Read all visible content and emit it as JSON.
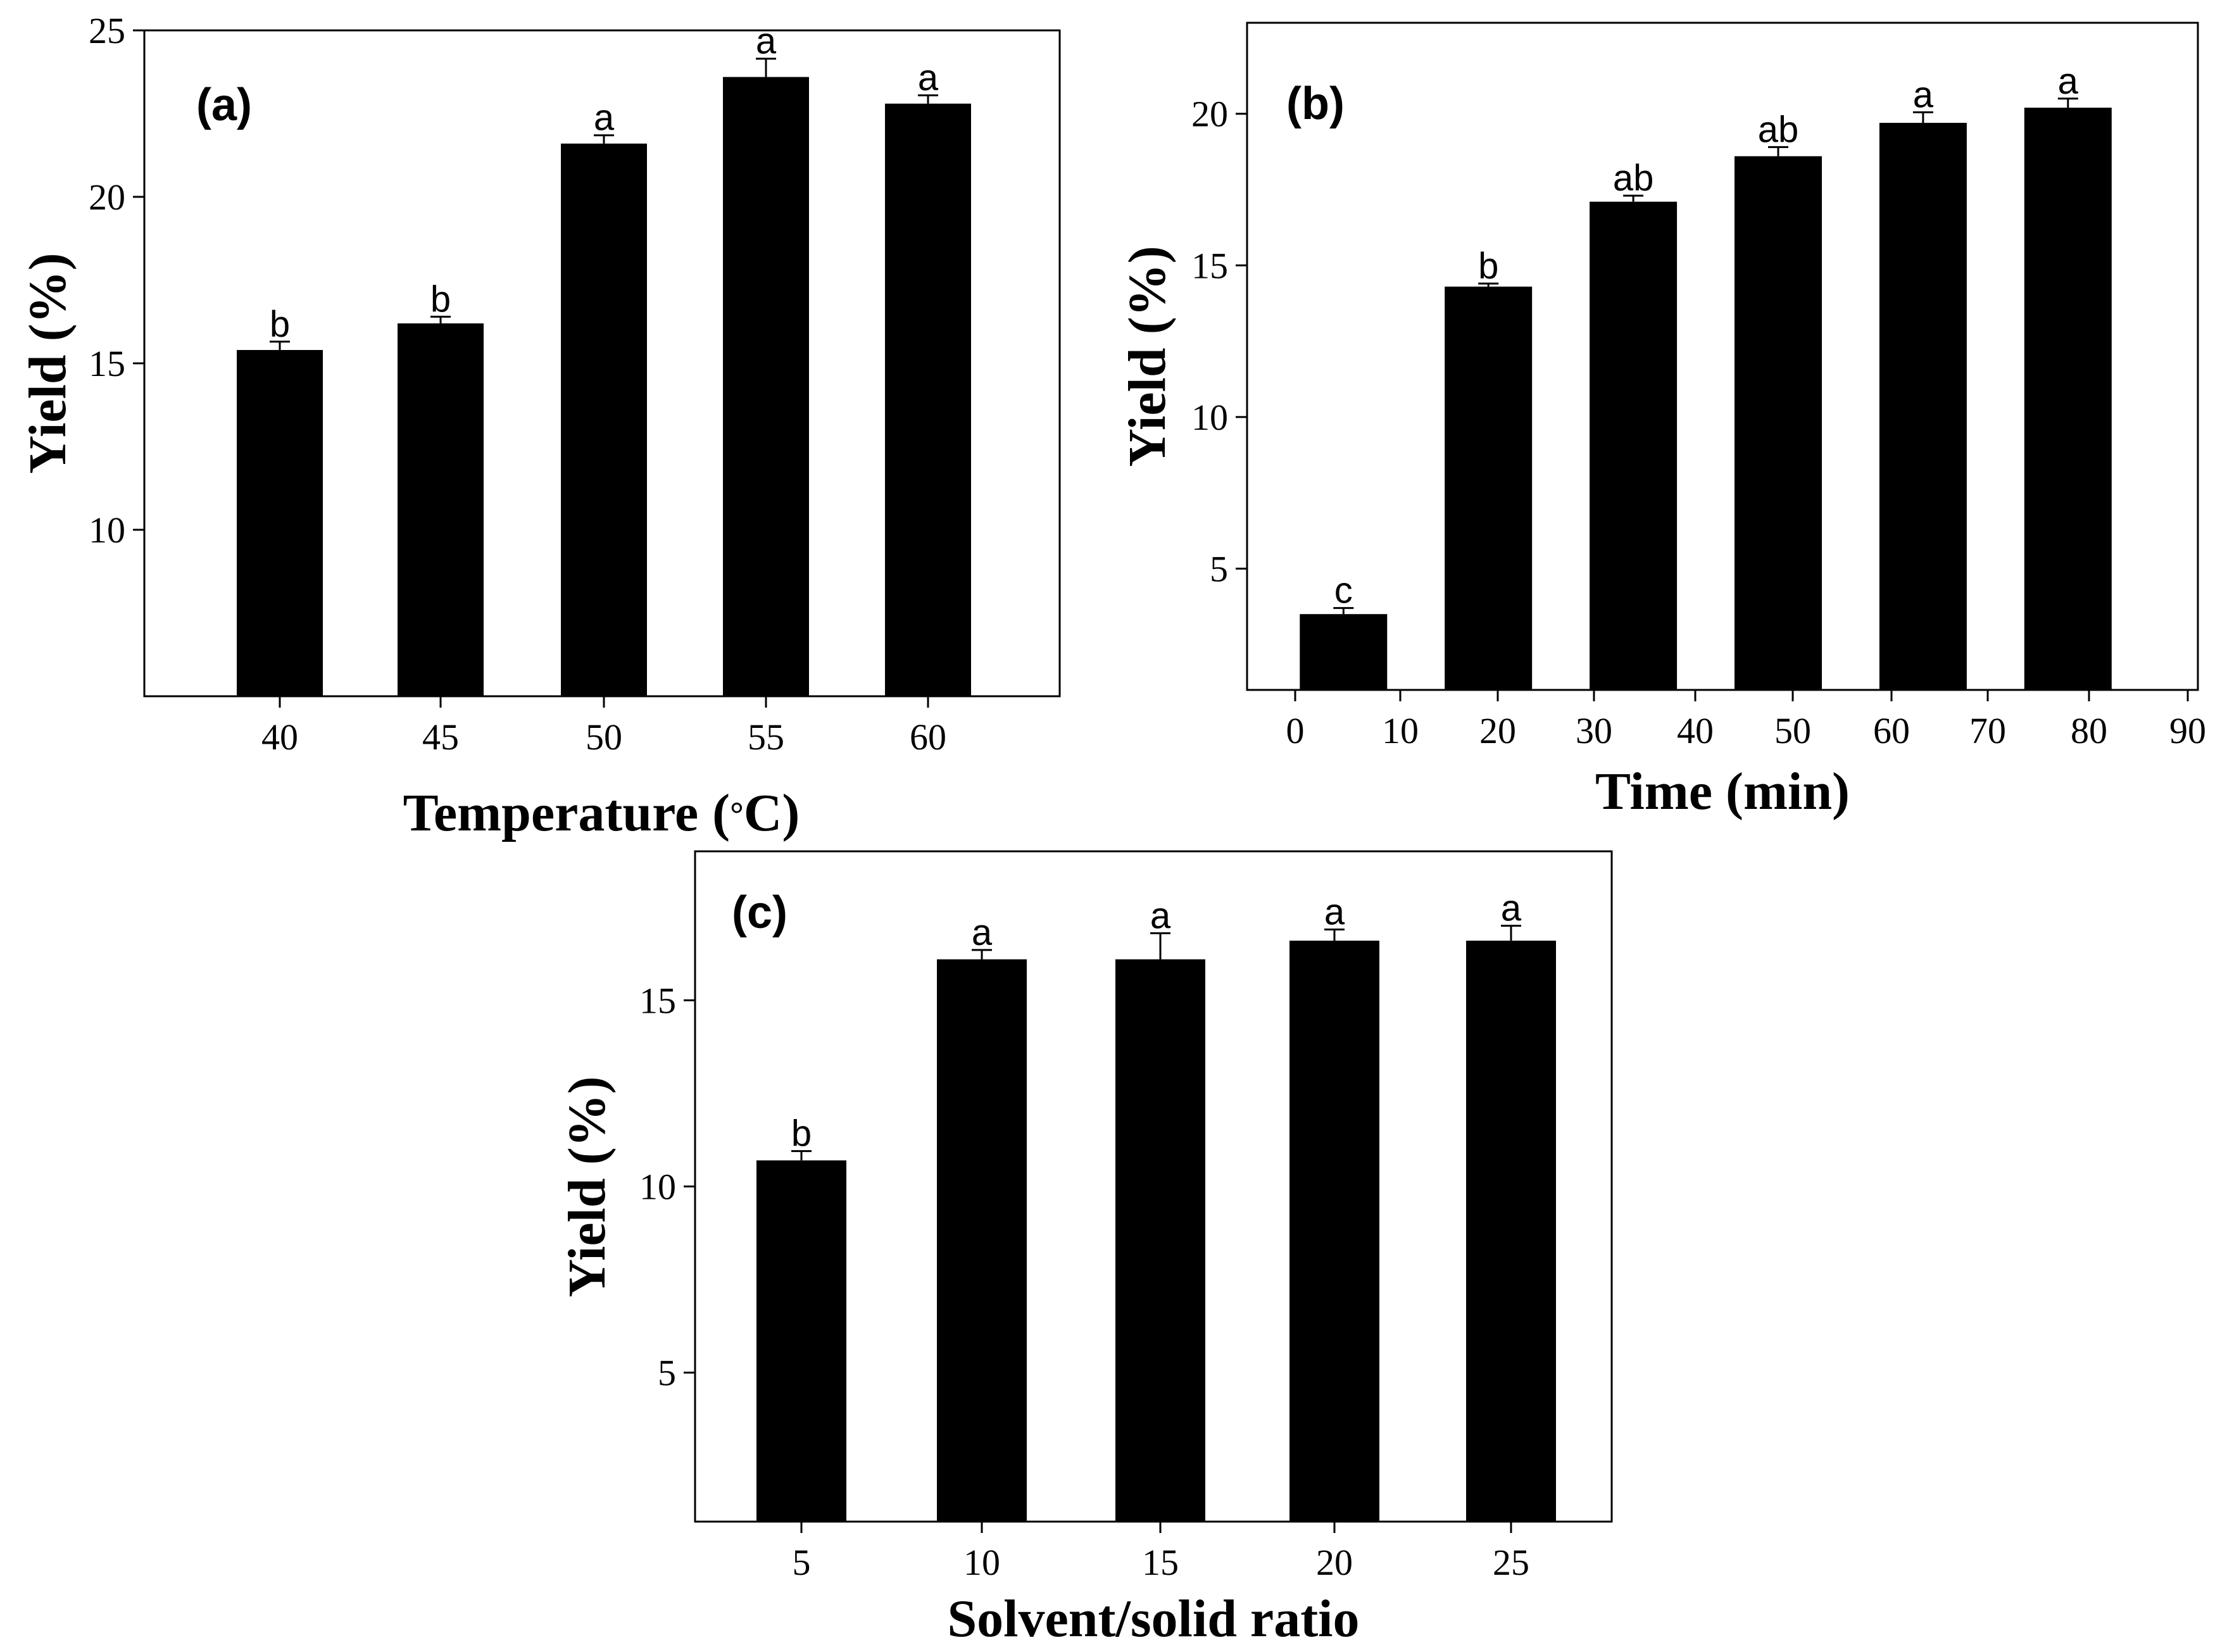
{
  "chart_data": [
    {
      "type": "bar",
      "panel_label": "(a)",
      "xlabel": "Temperature",
      "xlabel_unit_degree": "°",
      "xlabel_unit_close": "C)",
      "ylabel": "Yield (%)",
      "ylim": [
        5,
        25
      ],
      "yticks": [
        10,
        15,
        20,
        25
      ],
      "categories": [
        "40",
        "45",
        "50",
        "55",
        "60"
      ],
      "values": [
        15.4,
        16.2,
        21.6,
        23.6,
        22.8
      ],
      "errors": [
        0.25,
        0.2,
        0.25,
        0.55,
        0.25
      ],
      "significance": [
        "b",
        "b",
        "a",
        "a",
        "a"
      ],
      "color": "#000000"
    },
    {
      "type": "bar",
      "panel_label": "(b)",
      "xlabel": "Time (min)",
      "ylabel": "Yield (%)",
      "xlim": [
        -5,
        90
      ],
      "ylim": [
        1,
        23
      ],
      "xticks": [
        0,
        10,
        20,
        30,
        40,
        50,
        60,
        70,
        80,
        90
      ],
      "yticks": [
        5,
        10,
        15,
        20
      ],
      "x": [
        5,
        20,
        35,
        50,
        65,
        80
      ],
      "values": [
        3.5,
        14.3,
        17.1,
        18.6,
        19.7,
        20.2
      ],
      "errors": [
        0.2,
        0.1,
        0.2,
        0.3,
        0.35,
        0.3
      ],
      "significance": [
        "c",
        "b",
        "ab",
        "ab",
        "a",
        "a"
      ],
      "color": "#000000"
    },
    {
      "type": "bar",
      "panel_label": "(c)",
      "xlabel": "Solvent/solid ratio",
      "ylabel": "Yield (%)",
      "ylim": [
        1,
        19
      ],
      "yticks": [
        5,
        10,
        15
      ],
      "categories": [
        "5",
        "10",
        "15",
        "20",
        "25"
      ],
      "values": [
        10.7,
        16.1,
        16.1,
        16.6,
        16.6
      ],
      "errors": [
        0.25,
        0.25,
        0.7,
        0.3,
        0.4
      ],
      "significance": [
        "b",
        "a",
        "a",
        "a",
        "a"
      ],
      "color": "#000000"
    }
  ]
}
